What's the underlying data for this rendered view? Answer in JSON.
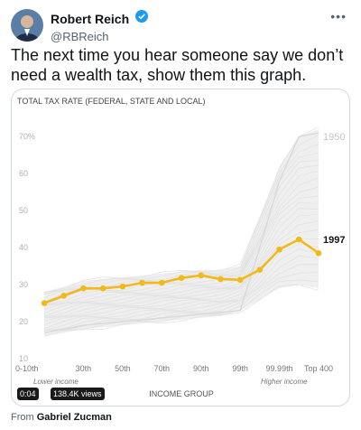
{
  "author": {
    "display_name": "Robert Reich",
    "handle": "@RBReich"
  },
  "more_label": "•••",
  "tweet_text": "The next time you hear someone say we don’t need a wealth tax, show them this graph.",
  "video": {
    "time": "0:04",
    "views": "138.4K views"
  },
  "source": {
    "prefix": "From",
    "name": "Gabriel Zucman"
  },
  "colors": {
    "highlight": "#f2b91d",
    "background_lines": "#e6e6e6",
    "verified": "#1d9bf0"
  },
  "chart_data": {
    "type": "line",
    "title": "TOTAL TAX RATE (FEDERAL, STATE AND LOCAL)",
    "xlabel": "INCOME GROUP",
    "x_tick_labels": [
      "0-10th",
      "30th",
      "50th",
      "70th",
      "90th",
      "99th",
      "99.99th",
      "Top 400"
    ],
    "x_sub_labels": [
      "Lower income",
      "Higher income"
    ],
    "ylim": [
      10,
      72
    ],
    "y_ticks": [
      "10",
      "20",
      "30",
      "40",
      "50",
      "60",
      "70%"
    ],
    "grid": false,
    "series": [
      {
        "name": "1997",
        "highlighted": true,
        "values": [
          25,
          27,
          29,
          29,
          29.5,
          30.5,
          30.5,
          31.8,
          32.5,
          31.5,
          31.3,
          34,
          39.5,
          42.2,
          38.5
        ]
      },
      {
        "name": "1950",
        "highlighted": false,
        "values": [
          17,
          18,
          19,
          19.5,
          20,
          20.5,
          21,
          21.5,
          22,
          22.5,
          23,
          40,
          58,
          70,
          71
        ]
      }
    ],
    "background_series_range": {
      "low": [
        16,
        17,
        18,
        18.5,
        19,
        19.5,
        20,
        20.5,
        21,
        21.5,
        23,
        26,
        29,
        30,
        29
      ],
      "high": [
        28,
        29.5,
        31,
        31.5,
        32,
        32.5,
        33,
        33.5,
        34,
        34,
        35,
        48,
        62,
        70,
        72
      ]
    }
  }
}
